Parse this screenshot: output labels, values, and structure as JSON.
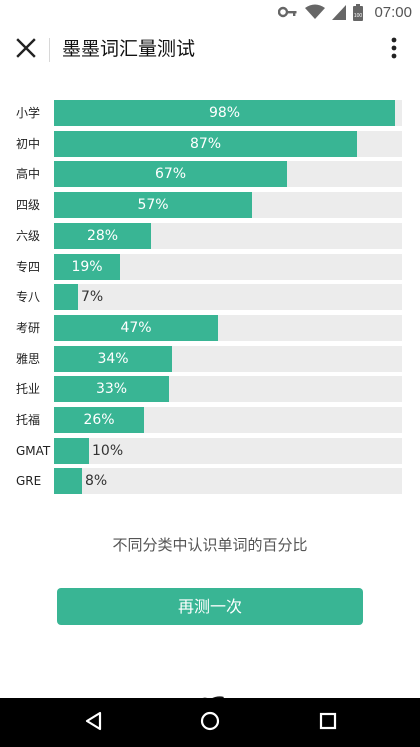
{
  "status_bar": {
    "time": "07:00",
    "icons": [
      "key-icon",
      "wifi-icon",
      "signal-icon",
      "battery-icon"
    ]
  },
  "app_bar": {
    "title": "墨墨词汇量测试",
    "close_icon": "close-icon",
    "more_icon": "more-vert-icon"
  },
  "chart_data": {
    "type": "bar",
    "orientation": "horizontal",
    "categories": [
      "小学",
      "初中",
      "高中",
      "四级",
      "六级",
      "专四",
      "专八",
      "考研",
      "雅思",
      "托业",
      "托福",
      "GMAT",
      "GRE"
    ],
    "values": [
      98,
      87,
      67,
      57,
      28,
      19,
      7,
      47,
      34,
      33,
      26,
      10,
      8
    ],
    "value_labels": [
      "98%",
      "87%",
      "67%",
      "57%",
      "28%",
      "19%",
      "7%",
      "47%",
      "34%",
      "33%",
      "26%",
      "10%",
      "8%"
    ],
    "xlim": [
      0,
      100
    ],
    "unit": "%",
    "grid": false,
    "colors": {
      "bar": "#39b594",
      "track": "#ececec"
    }
  },
  "caption": "不同分类中认识单词的百分比",
  "retest_button_label": "再测一次",
  "nav_bar": {
    "icons": [
      "back-icon",
      "home-icon",
      "recents-icon"
    ]
  }
}
